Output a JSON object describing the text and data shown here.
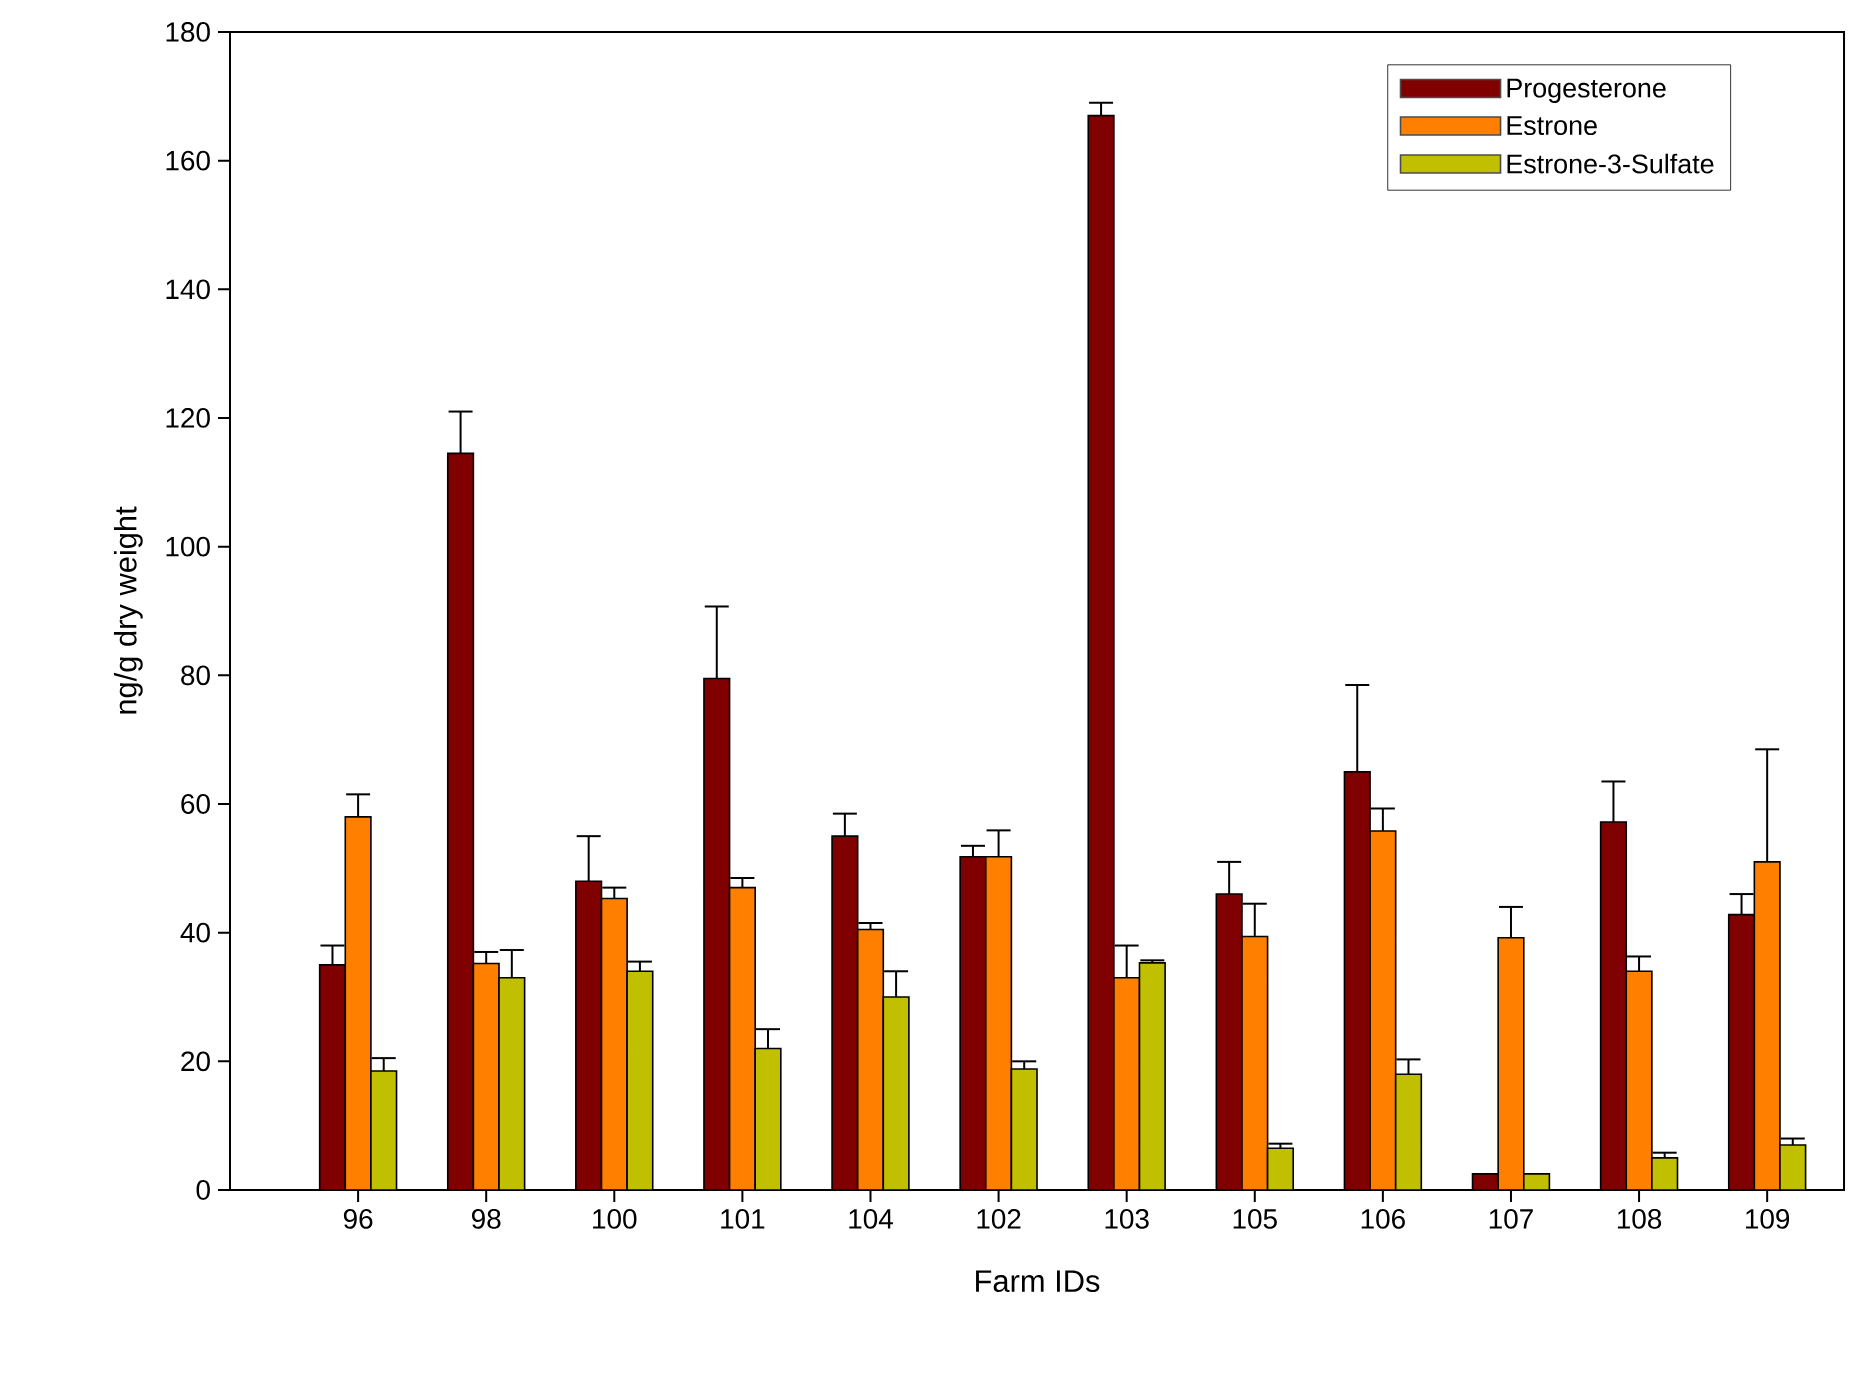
{
  "chart_data": {
    "type": "bar",
    "xlabel": "Farm IDs",
    "ylabel": "ng/g dry weight",
    "categories": [
      "96",
      "98",
      "100",
      "101",
      "104",
      "102",
      "103",
      "105",
      "106",
      "107",
      "108",
      "109"
    ],
    "series": [
      {
        "name": "Progesterone",
        "color": "#800000",
        "values": [
          35,
          114.5,
          48,
          79.5,
          55,
          51.8,
          167,
          46,
          65,
          2.5,
          57.2,
          42.8
        ],
        "errors": [
          3,
          6.5,
          7,
          11.2,
          3.5,
          1.7,
          2,
          5,
          13.5,
          null,
          6.3,
          3.2
        ]
      },
      {
        "name": "Estrone",
        "color": "#ff8000",
        "values": [
          58,
          35.2,
          45.3,
          47,
          40.5,
          51.8,
          33,
          39.4,
          55.8,
          39.2,
          34,
          51
        ],
        "errors": [
          3.5,
          1.8,
          1.7,
          1.5,
          1,
          4.1,
          5,
          5.1,
          3.5,
          4.8,
          2.3,
          17.5
        ]
      },
      {
        "name": "Estrone-3-Sulfate",
        "color": "#c0c000",
        "values": [
          18.5,
          33,
          34,
          22,
          30,
          18.8,
          35.3,
          6.5,
          18,
          2.5,
          5,
          7
        ],
        "errors": [
          2,
          4.3,
          1.5,
          3,
          4,
          1.2,
          0.4,
          0.7,
          2.3,
          null,
          0.8,
          1
        ]
      }
    ],
    "ylim": [
      0,
      180
    ],
    "yticks": [
      0,
      20,
      40,
      60,
      80,
      100,
      120,
      140,
      160,
      180
    ],
    "legend": "top right",
    "grid": false
  }
}
